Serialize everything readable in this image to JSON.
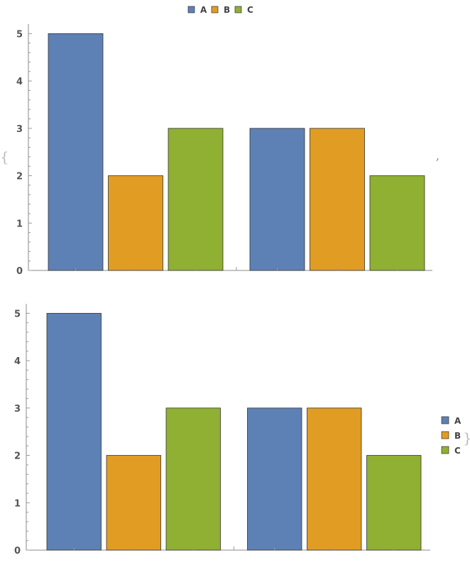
{
  "list_open": "{",
  "list_separator": ",",
  "list_close": "}",
  "chart_data": [
    {
      "type": "bar",
      "groups": 2,
      "series": [
        {
          "name": "A",
          "values": [
            5,
            3
          ],
          "color": "#5e81b5"
        },
        {
          "name": "B",
          "values": [
            2,
            3
          ],
          "color": "#e19c24"
        },
        {
          "name": "C",
          "values": [
            3,
            2
          ],
          "color": "#8fb032"
        }
      ],
      "y_ticks": [
        "0",
        "1",
        "2",
        "3",
        "4",
        "5"
      ],
      "ylim": [
        0,
        5.2
      ],
      "legend_position": "top",
      "grid": false
    },
    {
      "type": "bar",
      "groups": 2,
      "series": [
        {
          "name": "A",
          "values": [
            5,
            3
          ],
          "color": "#5e81b5"
        },
        {
          "name": "B",
          "values": [
            2,
            3
          ],
          "color": "#e19c24"
        },
        {
          "name": "C",
          "values": [
            3,
            2
          ],
          "color": "#8fb032"
        }
      ],
      "y_ticks": [
        "0",
        "1",
        "2",
        "3",
        "4",
        "5"
      ],
      "ylim": [
        0,
        5.2
      ],
      "legend_position": "right",
      "grid": false
    }
  ]
}
